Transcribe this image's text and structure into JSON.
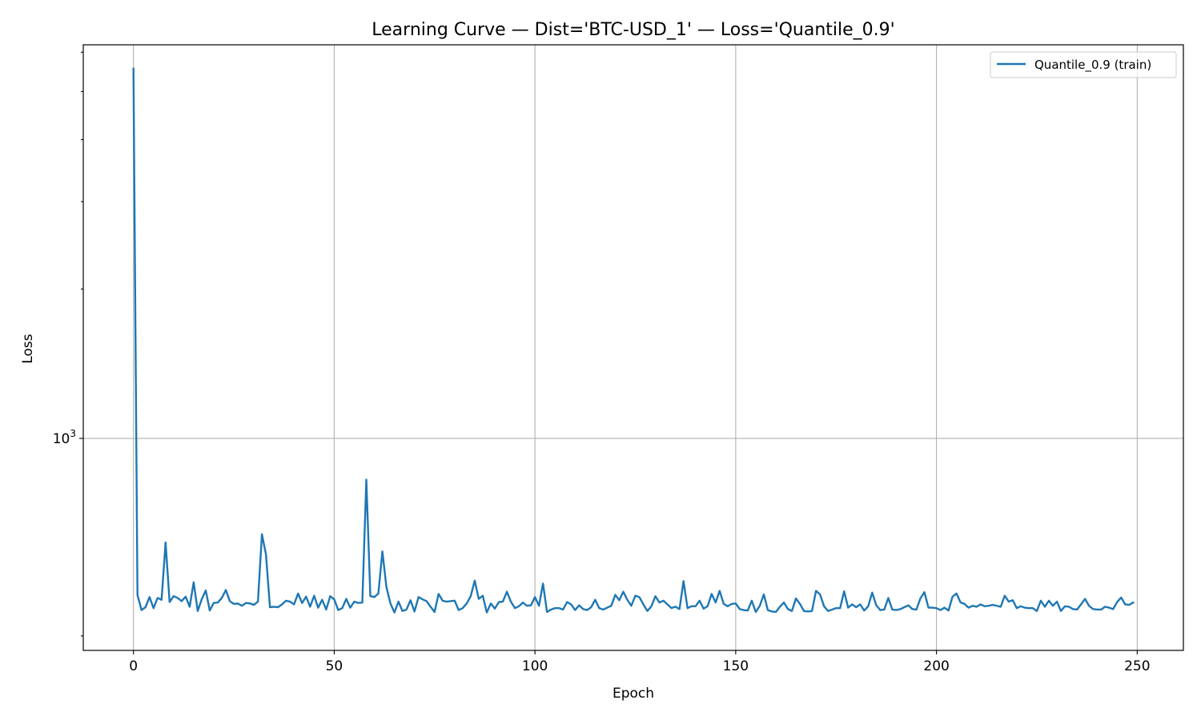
{
  "chart_data": {
    "type": "line",
    "title": "Learning Curve — Dist='BTC-USD_1' — Loss='Quantile_0.9'",
    "xlabel": "Epoch",
    "ylabel": "Loss",
    "yscale": "log",
    "xlim": [
      -12.5,
      261.5
    ],
    "ylim": [
      374,
      6210
    ],
    "grid": true,
    "legend_position": "upper right",
    "x_ticks": [
      0,
      50,
      100,
      150,
      200,
      250
    ],
    "y_major_ticks": [
      {
        "value": 1000,
        "base": "10",
        "exponent": "3"
      }
    ],
    "y_minor_ticks": [
      400,
      2000,
      3000,
      4000,
      5000,
      6000
    ],
    "colors": {
      "series": "#1f77b4"
    },
    "series": [
      {
        "name": "Quantile_0.9 (train)",
        "color": "#1f77b4",
        "x_start": 0,
        "x_step": 1,
        "values": [
          5560,
          484,
          451,
          457,
          479,
          455,
          477,
          473,
          617,
          468,
          481,
          477,
          470,
          480,
          458,
          513,
          449,
          474,
          494,
          450,
          466,
          467,
          477,
          495,
          470,
          464,
          465,
          460,
          466,
          465,
          462,
          469,
          641,
          584,
          457,
          458,
          457,
          463,
          471,
          469,
          463,
          487,
          466,
          480,
          458,
          482,
          456,
          473,
          452,
          481,
          474,
          451,
          455,
          475,
          456,
          469,
          466,
          467,
          826,
          481,
          479,
          487,
          592,
          502,
          465,
          446,
          469,
          449,
          452,
          472,
          448,
          479,
          474,
          470,
          458,
          447,
          486,
          471,
          469,
          470,
          471,
          451,
          455,
          465,
          481,
          517,
          475,
          482,
          446,
          465,
          454,
          468,
          469,
          491,
          469,
          455,
          459,
          467,
          460,
          461,
          479,
          460,
          510,
          447,
          452,
          455,
          455,
          452,
          468,
          463,
          451,
          461,
          453,
          451,
          457,
          473,
          455,
          452,
          456,
          460,
          484,
          472,
          491,
          473,
          460,
          482,
          479,
          463,
          449,
          459,
          481,
          467,
          471,
          463,
          455,
          458,
          453,
          516,
          455,
          459,
          459,
          471,
          454,
          459,
          486,
          467,
          493,
          464,
          459,
          464,
          465,
          453,
          451,
          450,
          471,
          447,
          460,
          485,
          451,
          448,
          447,
          458,
          467,
          453,
          449,
          476,
          464,
          449,
          448,
          449,
          493,
          485,
          459,
          449,
          452,
          455,
          455,
          492,
          456,
          463,
          457,
          463,
          450,
          459,
          489,
          461,
          451,
          452,
          477,
          452,
          451,
          453,
          457,
          461,
          453,
          452,
          476,
          490,
          456,
          456,
          455,
          451,
          456,
          450,
          480,
          487,
          467,
          464,
          456,
          460,
          458,
          463,
          459,
          460,
          462,
          460,
          458,
          482,
          469,
          472,
          455,
          459,
          456,
          455,
          455,
          449,
          471,
          458,
          471,
          460,
          469,
          449,
          459,
          458,
          453,
          452,
          463,
          475,
          460,
          453,
          452,
          452,
          458,
          456,
          453,
          468,
          478,
          463,
          462,
          467
        ]
      }
    ]
  }
}
